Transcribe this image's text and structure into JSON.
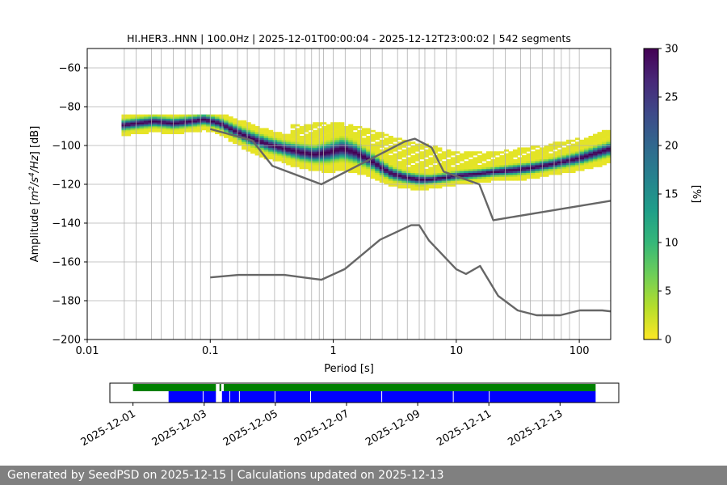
{
  "chart_data": {
    "type": "heatmap",
    "title": "HI.HER3..HNN | 100.0Hz | 2025-12-01T00:00:04 - 2025-12-12T23:00:02 | 542 segments",
    "xlabel": "Period [s]",
    "ylabel_parts": [
      "Amplitude [",
      "m",
      "2",
      "/s",
      "4",
      "/Hz",
      "] [dB]"
    ],
    "x_scale": "log",
    "xlim": [
      0.01,
      180
    ],
    "ylim": [
      -200,
      -50
    ],
    "x_ticks": [
      {
        "value": 0.01,
        "label": "0.01"
      },
      {
        "value": 0.1,
        "label": "0.1"
      },
      {
        "value": 1,
        "label": "1"
      },
      {
        "value": 10,
        "label": "10"
      },
      {
        "value": 100,
        "label": "100"
      }
    ],
    "y_ticks": [
      {
        "value": -60,
        "label": "−60"
      },
      {
        "value": -80,
        "label": "−80"
      },
      {
        "value": -100,
        "label": "−100"
      },
      {
        "value": -120,
        "label": "−120"
      },
      {
        "value": -140,
        "label": "−140"
      },
      {
        "value": -160,
        "label": "−160"
      },
      {
        "value": -180,
        "label": "−180"
      },
      {
        "value": -200,
        "label": "−200"
      }
    ],
    "period_gridlines": [
      0.02,
      0.025,
      0.0333,
      0.04,
      0.05,
      0.0625,
      0.0714,
      0.0833,
      0.1,
      0.125,
      0.1667,
      0.2,
      0.25,
      0.3333,
      0.4,
      0.5,
      0.5882,
      0.6667,
      0.7692,
      0.8333,
      1,
      1.25,
      1.6667,
      2,
      2.5,
      3.3333,
      4,
      5,
      5.5556,
      6.6667,
      8.3333,
      10,
      20,
      25,
      33.3333,
      40,
      50,
      62.5,
      71.4286,
      83.3333,
      100
    ],
    "colorbar": {
      "label": "[%]",
      "range": [
        0,
        30
      ],
      "ticks": [
        {
          "value": 0,
          "label": "0"
        },
        {
          "value": 5,
          "label": "5"
        },
        {
          "value": 10,
          "label": "10"
        },
        {
          "value": 15,
          "label": "15"
        },
        {
          "value": 20,
          "label": "20"
        },
        {
          "value": 25,
          "label": "25"
        },
        {
          "value": 30,
          "label": "30"
        }
      ],
      "colors": [
        "#fde725",
        "#b5de2b",
        "#6ece58",
        "#35b779",
        "#1f9e89",
        "#26828e",
        "#31688e",
        "#3e4989",
        "#482878",
        "#440154"
      ]
    },
    "density_mode": {
      "period": [
        0.019,
        0.025,
        0.035,
        0.05,
        0.07,
        0.09,
        0.12,
        0.16,
        0.2,
        0.3,
        0.4,
        0.55,
        0.7,
        0.9,
        1.2,
        1.5,
        2,
        2.5,
        3,
        4,
        5,
        6,
        8,
        10,
        15,
        20,
        30,
        40,
        60,
        100,
        180
      ],
      "db": [
        -90,
        -89,
        -88,
        -89,
        -88,
        -87,
        -89,
        -93,
        -96,
        -100,
        -102,
        -104,
        -105,
        -104,
        -102,
        -104,
        -108,
        -112,
        -115,
        -117,
        -118,
        -118,
        -117,
        -116,
        -115,
        -114,
        -113,
        -112,
        -110,
        -107,
        -102
      ],
      "spread_db": [
        6,
        6,
        6,
        6,
        6,
        6,
        6,
        7,
        8,
        8,
        8,
        9,
        9,
        11,
        12,
        11,
        9,
        8,
        7,
        6,
        6,
        5,
        5,
        5,
        5,
        5,
        6,
        6,
        6,
        7,
        8
      ],
      "outlier_band": {
        "period": [
          0.5,
          0.7,
          1,
          1.5,
          2.5,
          4,
          6,
          10,
          20,
          40,
          80,
          180
        ],
        "hi": [
          -90,
          -89,
          -88,
          -90,
          -94,
          -98,
          -100,
          -104,
          -104,
          -101,
          -98,
          -92
        ]
      }
    },
    "nhnm": {
      "period": [
        0.1,
        0.22,
        0.32,
        0.8,
        3.8,
        4.6,
        6.3,
        7.9,
        15.4,
        20,
        180
      ],
      "db": [
        -91.5,
        -97.4,
        -110.5,
        -120,
        -98,
        -96.5,
        -101,
        -113.5,
        -120,
        -138.5,
        -128.5
      ]
    },
    "nlnm": {
      "period": [
        0.1,
        0.17,
        0.4,
        0.8,
        1.24,
        2.4,
        4.3,
        5,
        6,
        10,
        12,
        15.6,
        21.9,
        31.6,
        45,
        70,
        101,
        154,
        180
      ],
      "db": [
        -168,
        -166.7,
        -166.7,
        -169.2,
        -163.7,
        -148.6,
        -141.1,
        -141.1,
        -149,
        -163.8,
        -166.2,
        -162.1,
        -177.5,
        -185,
        -187.5,
        -187.5,
        -185,
        -185,
        -185.5
      ]
    },
    "availability": {
      "ticks": [
        {
          "label": "2025-12-01"
        },
        {
          "label": "2025-12-03"
        },
        {
          "label": "2025-12-05"
        },
        {
          "label": "2025-12-07"
        },
        {
          "label": "2025-12-09"
        },
        {
          "label": "2025-12-11"
        },
        {
          "label": "2025-12-13"
        }
      ],
      "day_range": [
        -0.65,
        13.65
      ],
      "data_bar_color": "#008000",
      "psd_bar_color": "#0000ff",
      "data_segments_days": [
        [
          0.0,
          2.33
        ],
        [
          2.43,
          2.48
        ],
        [
          2.55,
          13.0
        ]
      ],
      "psd_segments_days": [
        [
          1.0,
          2.33
        ],
        [
          2.5,
          13.0
        ]
      ],
      "psd_gap_marks_days": [
        1.97,
        2.72,
        2.99,
        3.99,
        4.99,
        6.99,
        9.0,
        10.01
      ]
    }
  },
  "footer": {
    "text": "Generated by SeedPSD on 2025-12-15 | Calculations updated on 2025-12-13"
  }
}
